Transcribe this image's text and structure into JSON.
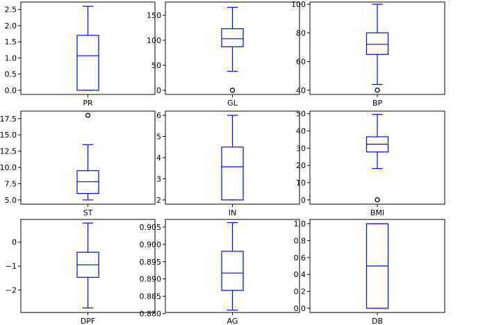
{
  "chart_data": [
    {
      "type": "box",
      "xlabel": "PR",
      "ylim": [
        -0.13,
        2.73
      ],
      "yticks": [
        0.0,
        0.5,
        1.0,
        1.5,
        2.0,
        2.5
      ],
      "tick_decimals": 1,
      "box": {
        "whislo": 0.0,
        "q1": 0.0,
        "med": 1.07,
        "q3": 1.7,
        "whishi": 2.6
      },
      "fliers": []
    },
    {
      "type": "box",
      "xlabel": "GL",
      "ylim": [
        -8.4,
        176.4
      ],
      "yticks": [
        0,
        50,
        100,
        150
      ],
      "tick_decimals": 0,
      "box": {
        "whislo": 38,
        "q1": 87,
        "med": 103,
        "q3": 123,
        "whishi": 166
      },
      "fliers": [
        0
      ]
    },
    {
      "type": "box",
      "xlabel": "BP",
      "ylim": [
        37.0,
        101.5
      ],
      "yticks": [
        40,
        60,
        80,
        100
      ],
      "tick_decimals": 0,
      "box": {
        "whislo": 44,
        "q1": 65,
        "med": 72,
        "q3": 80,
        "whishi": 100
      },
      "fliers": [
        40
      ]
    },
    {
      "type": "box",
      "xlabel": "ST",
      "ylim": [
        4.35,
        18.65
      ],
      "yticks": [
        5.0,
        7.5,
        10.0,
        12.5,
        15.0,
        17.5
      ],
      "tick_decimals": 1,
      "box": {
        "whislo": 5.0,
        "q1": 6.0,
        "med": 7.8,
        "q3": 9.5,
        "whishi": 13.5
      },
      "fliers": [
        18
      ]
    },
    {
      "type": "box",
      "xlabel": "IN",
      "ylim": [
        1.8,
        6.2
      ],
      "yticks": [
        2,
        3,
        4,
        5,
        6
      ],
      "tick_decimals": 0,
      "box": {
        "whislo": 2.0,
        "q1": 2.0,
        "med": 3.57,
        "q3": 4.5,
        "whishi": 6.0
      },
      "fliers": []
    },
    {
      "type": "box",
      "xlabel": "BMI",
      "ylim": [
        -2.5,
        51.5
      ],
      "yticks": [
        0,
        10,
        20,
        30,
        40,
        50
      ],
      "tick_decimals": 0,
      "box": {
        "whislo": 18.2,
        "q1": 27.8,
        "med": 32.3,
        "q3": 36.6,
        "whishi": 49.6
      },
      "fliers": [
        0
      ]
    },
    {
      "type": "box",
      "xlabel": "DPF",
      "ylim": [
        -2.94,
        0.95
      ],
      "yticks": [
        -2,
        -1,
        0
      ],
      "tick_decimals": 0,
      "minus_sign": "−",
      "box": {
        "whislo": -2.75,
        "q1": -1.47,
        "med": -0.95,
        "q3": -0.42,
        "whishi": 0.8
      },
      "fliers": []
    },
    {
      "type": "box",
      "xlabel": "AG",
      "ylim": [
        0.8803,
        0.9072
      ],
      "yticks": [
        0.88,
        0.885,
        0.89,
        0.895,
        0.9,
        0.905
      ],
      "tick_decimals": 3,
      "box": {
        "whislo": 0.881,
        "q1": 0.8867,
        "med": 0.8917,
        "q3": 0.898,
        "whishi": 0.9063
      },
      "fliers": []
    },
    {
      "type": "box",
      "xlabel": "DB",
      "ylim": [
        -0.05,
        1.05
      ],
      "yticks": [
        0.0,
        0.2,
        0.4,
        0.6,
        0.8,
        1.0
      ],
      "tick_decimals": 1,
      "box": {
        "whislo": 0.0,
        "q1": 0.0,
        "med": 0.5,
        "q3": 1.0,
        "whishi": 1.0
      },
      "fliers": []
    }
  ],
  "colors": {
    "box": "#0000ff",
    "flier": "#000000",
    "axes": "#000000",
    "background": "#ffffff"
  }
}
